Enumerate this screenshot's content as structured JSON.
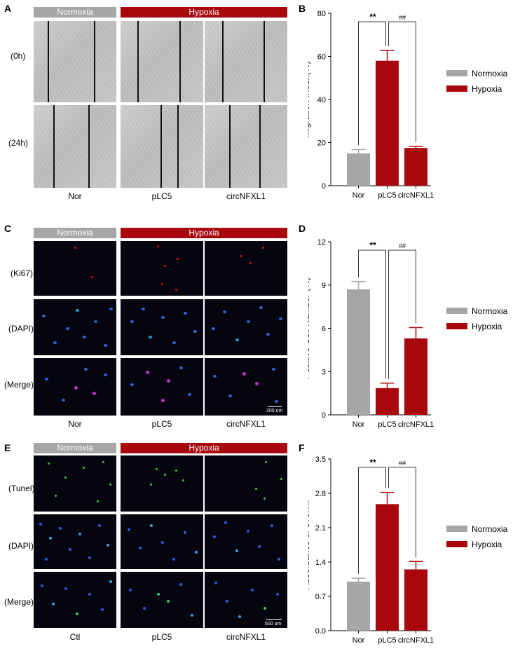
{
  "colors": {
    "normoxia": "#a6a6a8",
    "hypoxia": "#a8080d"
  },
  "panels": {
    "A": {
      "letter": "A",
      "normoxia": "Normoxia",
      "hypoxia": "Hypoxia",
      "rows": [
        "(0h)",
        "(24h)"
      ],
      "columns": [
        "Nor",
        "pLC5",
        "circNFXL1"
      ]
    },
    "C": {
      "letter": "C",
      "normoxia": "Normoxia",
      "hypoxia": "Hypoxia",
      "rows": [
        "(Ki67)",
        "(DAPI)",
        "(Merge)"
      ],
      "columns": [
        "Nor",
        "pLC5",
        "circNFXL1"
      ],
      "scale": "200 um"
    },
    "E": {
      "letter": "E",
      "normoxia": "Normoxia",
      "hypoxia": "Hypoxia",
      "rows": [
        "(Tunel)",
        "(DAPI)",
        "(Merge)"
      ],
      "columns": [
        "Ctl",
        "pLC5",
        "circNFXL1"
      ],
      "scale": "500 um"
    }
  },
  "chart_data": [
    {
      "panel": "B",
      "type": "bar",
      "categories": [
        "Nor",
        "pLC5",
        "circNFXL1"
      ],
      "values": [
        15,
        58,
        17.5
      ],
      "errors": [
        1.8,
        4.8,
        0.8
      ],
      "bar_groups": [
        "Normoxia",
        "Hypoxia",
        "Hypoxia"
      ],
      "ylabel": "Migration Index(%)",
      "ylim": [
        0,
        80
      ],
      "yticks": [
        "0",
        "20",
        "40",
        "60",
        "80"
      ],
      "legend": [
        "Normoxia",
        "Hypoxia"
      ],
      "annotations": [
        "**",
        "##"
      ]
    },
    {
      "panel": "D",
      "type": "bar",
      "categories": [
        "Nor",
        "pLC5",
        "circNFXL1"
      ],
      "values": [
        8.7,
        1.85,
        5.3
      ],
      "errors": [
        0.55,
        0.35,
        0.75
      ],
      "bar_groups": [
        "Normoxia",
        "Hypoxia",
        "Hypoxia"
      ],
      "ylabel": "Positive Cell Number (%)",
      "ylim": [
        0,
        12
      ],
      "yticks": [
        "0",
        "3",
        "6",
        "9",
        "12"
      ],
      "legend": [
        "Normoxia",
        "Hypoxia"
      ],
      "annotations": [
        "**",
        "##"
      ]
    },
    {
      "panel": "F",
      "type": "bar",
      "categories": [
        "Nor",
        "pLC5",
        "circNFXL1"
      ],
      "values": [
        1.0,
        2.58,
        1.25
      ],
      "errors": [
        0.07,
        0.24,
        0.16
      ],
      "bar_groups": [
        "Normoxia",
        "Hypoxia",
        "Hypoxia"
      ],
      "ylabel": "Absorbance of 370nm",
      "ylim": [
        0,
        3.5
      ],
      "yticks": [
        "0.0",
        "0.7",
        "1.4",
        "2.1",
        "2.8",
        "3.5"
      ],
      "legend": [
        "Normoxia",
        "Hypoxia"
      ],
      "annotations": [
        "**",
        "##"
      ]
    }
  ]
}
